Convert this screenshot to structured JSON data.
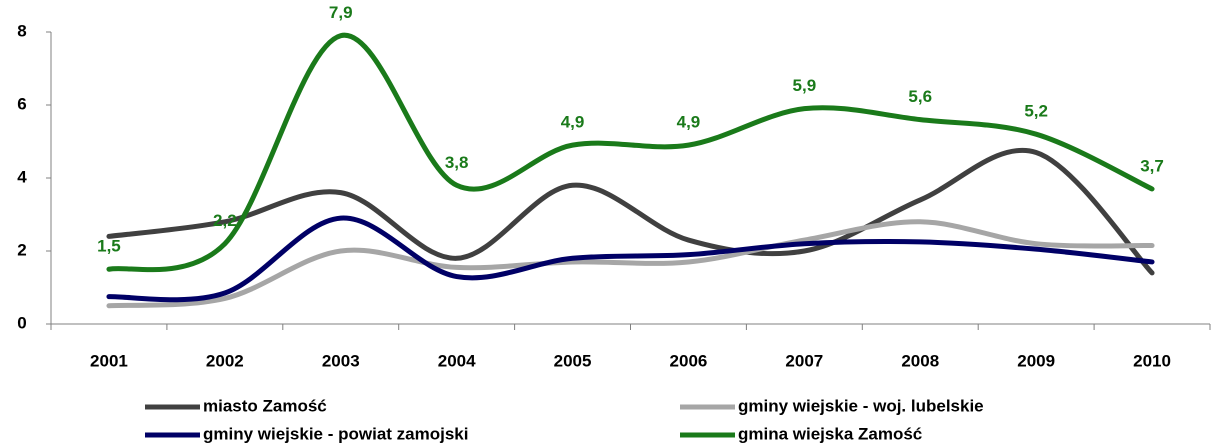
{
  "chart_data": {
    "type": "line",
    "categories": [
      "2001",
      "2002",
      "2003",
      "2004",
      "2005",
      "2006",
      "2007",
      "2008",
      "2009",
      "2010"
    ],
    "series": [
      {
        "name": "miasto Zamość",
        "color": "#404040",
        "values": [
          2.4,
          2.8,
          3.6,
          1.8,
          3.8,
          2.3,
          2.0,
          3.4,
          4.7,
          1.4
        ]
      },
      {
        "name": "gminy wiejskie - woj. lubelskie",
        "color": "#a6a6a6",
        "values": [
          0.5,
          0.7,
          2.0,
          1.55,
          1.7,
          1.7,
          2.3,
          2.8,
          2.2,
          2.15
        ]
      },
      {
        "name": "gminy wiejskie - powiat zamojski",
        "color": "#000066",
        "values": [
          0.75,
          0.85,
          2.9,
          1.3,
          1.8,
          1.9,
          2.2,
          2.25,
          2.05,
          1.7
        ]
      },
      {
        "name": "gmina wiejska Zamość",
        "color": "#1a7a1a",
        "values": [
          1.5,
          2.2,
          7.9,
          3.8,
          4.9,
          4.9,
          5.9,
          5.6,
          5.2,
          3.7
        ],
        "value_labels": [
          "1,5",
          "2,2",
          "7,9",
          "3,8",
          "4,9",
          "4,9",
          "5,9",
          "5,6",
          "5,2",
          "3,7"
        ]
      }
    ],
    "ylim": [
      0,
      8
    ],
    "yticks": [
      0,
      2,
      4,
      6,
      8
    ],
    "grid": false,
    "smooth": true,
    "legend": "bottom"
  }
}
